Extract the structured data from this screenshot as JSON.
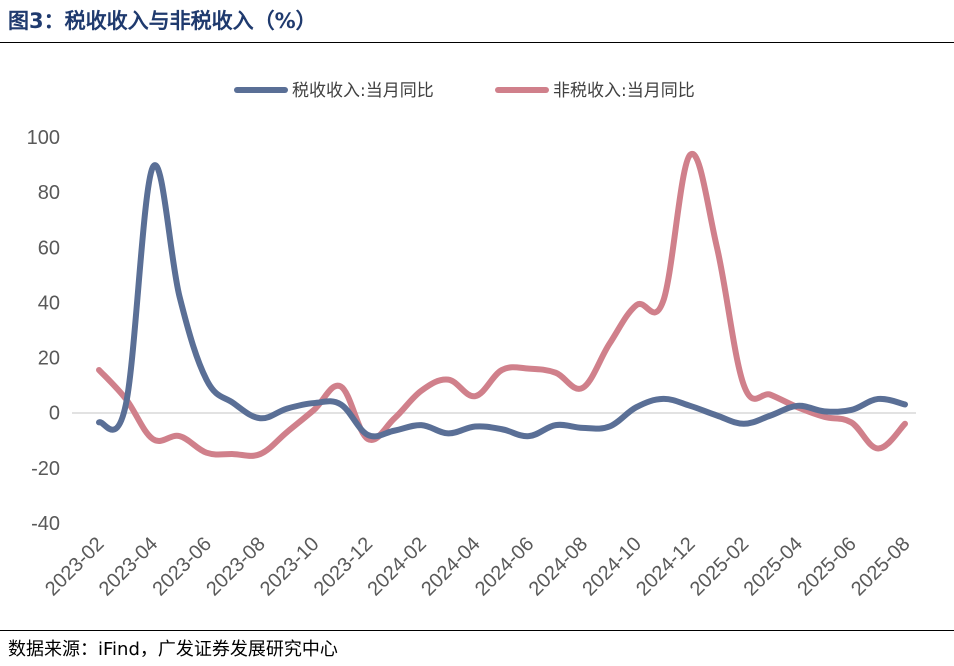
{
  "header": {
    "title": "图3：税收收入与非税收入（%）"
  },
  "footer": {
    "source": "数据来源：iFind，广发证券发展研究中心"
  },
  "chart_data": {
    "type": "line",
    "x": [
      "2023-02",
      "2023-03",
      "2023-04",
      "2023-05",
      "2023-06",
      "2023-07",
      "2023-08",
      "2023-09",
      "2023-10",
      "2023-11",
      "2023-12",
      "2024-01",
      "2024-02",
      "2024-03",
      "2024-04",
      "2024-05",
      "2024-06",
      "2024-07",
      "2024-08",
      "2024-09",
      "2024-10",
      "2024-11",
      "2024-12",
      "2025-01",
      "2025-02",
      "2025-03",
      "2025-04",
      "2025-05",
      "2025-06",
      "2025-07",
      "2025-08"
    ],
    "x_tick_labels": [
      "2023-02",
      "2023-04",
      "2023-06",
      "2023-08",
      "2023-10",
      "2023-12",
      "2024-02",
      "2024-04",
      "2024-06",
      "2024-08",
      "2024-10",
      "2024-12",
      "2025-02",
      "2025-04",
      "2025-06",
      "2025-08"
    ],
    "series": [
      {
        "name": "税收收入:当月同比",
        "color": "#5a6f96",
        "values": [
          -3.5,
          3.0,
          89.0,
          42.0,
          12.0,
          3.5,
          -2.0,
          1.5,
          3.5,
          3.0,
          -8.0,
          -6.5,
          -4.5,
          -7.5,
          -5.0,
          -6.0,
          -8.5,
          -4.5,
          -5.5,
          -5.0,
          2.0,
          5.0,
          2.5,
          -1.0,
          -4.0,
          -1.0,
          2.5,
          0.5,
          1.0,
          5.0,
          3.0
        ]
      },
      {
        "name": "非税收入:当月同比",
        "color": "#d0808b",
        "values": [
          15.5,
          5.0,
          -9.5,
          -8.5,
          -14.5,
          -15.0,
          -15.0,
          -7.0,
          1.0,
          9.5,
          -9.5,
          -2.0,
          8.0,
          12.0,
          6.0,
          15.5,
          16.0,
          14.5,
          9.0,
          25.0,
          39.0,
          40.5,
          93.5,
          60.0,
          10.0,
          6.5,
          2.0,
          -1.5,
          -3.5,
          -13.0,
          -4.0
        ]
      }
    ],
    "yticks": [
      100,
      80,
      60,
      40,
      20,
      0,
      -20,
      -40
    ],
    "ylim": [
      -40,
      100
    ],
    "legend_position": "top-center",
    "grid": false
  }
}
